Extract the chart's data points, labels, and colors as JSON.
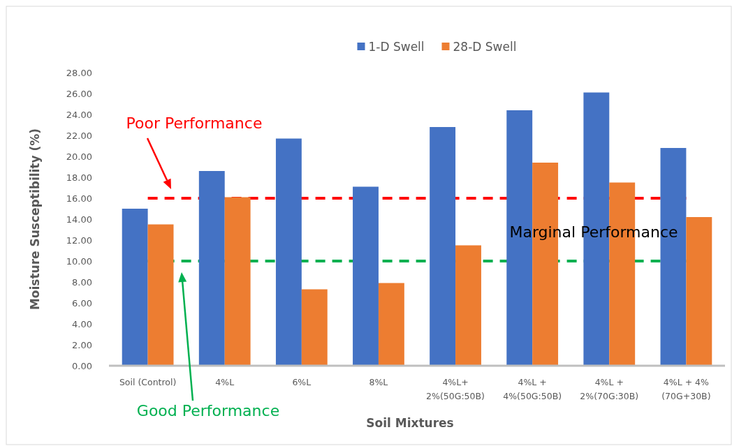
{
  "chart_data": {
    "type": "bar",
    "xlabel": "Soil Mixtures",
    "ylabel": "Moisture Susceptibility (%)",
    "categories": [
      "Soil (Control)",
      "4%L",
      "6%L",
      "8%L",
      "4%L+\n2%(50G:50B)",
      "4%L +\n4%(50G:50B)",
      "4%L +\n2%(70G:30B)",
      "4%L + 4%\n(70G+30B)"
    ],
    "series": [
      {
        "name": "1-D Swell",
        "color": "#4472c4",
        "values": [
          15.0,
          18.6,
          21.7,
          17.1,
          22.8,
          24.4,
          26.1,
          20.8
        ]
      },
      {
        "name": "28-D Swell",
        "color": "#ed7d31",
        "values": [
          13.5,
          16.1,
          7.3,
          7.9,
          11.5,
          19.4,
          17.5,
          14.2
        ]
      }
    ],
    "ylim": [
      0,
      28
    ],
    "yticks": [
      {
        "value": 0,
        "label": "0.00"
      },
      {
        "value": 2,
        "label": "2.00"
      },
      {
        "value": 4,
        "label": "4.00"
      },
      {
        "value": 6,
        "label": "6.00"
      },
      {
        "value": 8,
        "label": "8.00"
      },
      {
        "value": 10,
        "label": "10.00"
      },
      {
        "value": 12,
        "label": "12.00"
      },
      {
        "value": 14,
        "label": "14.00"
      },
      {
        "value": 16,
        "label": "16.00"
      },
      {
        "value": 18,
        "label": "18.00"
      },
      {
        "value": 20,
        "label": "20.00"
      },
      {
        "value": 22,
        "label": "22.00"
      },
      {
        "value": 24,
        "label": "24.00"
      },
      {
        "value": 26,
        "label": "26.00"
      },
      {
        "value": 28,
        "label": "28.00"
      }
    ],
    "ref_lines": [
      {
        "axis": "y",
        "value": 16,
        "label": "Poor Performance",
        "color": "#ff0000",
        "line_style": "dashed"
      },
      {
        "axis": "y",
        "value": 10,
        "label": "Good Performance",
        "color": "#00b050",
        "line_style": "dashed"
      }
    ],
    "annotations": [
      "Marginal Performance"
    ],
    "legend": "top",
    "grid": false
  }
}
